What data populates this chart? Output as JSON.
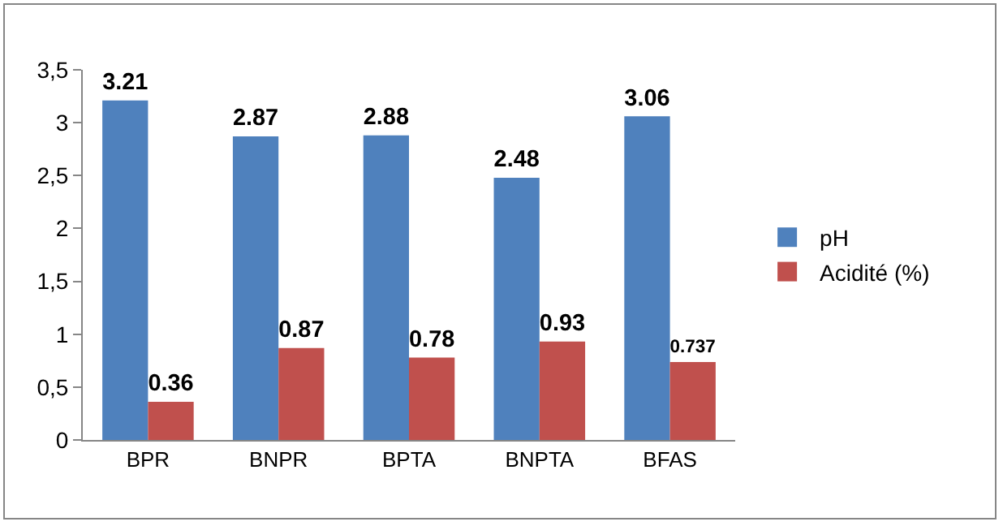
{
  "chart_data": {
    "type": "bar",
    "categories": [
      "BPR",
      "BNPR",
      "BPTA",
      "BNPTA",
      "BFAS"
    ],
    "series": [
      {
        "name": "pH",
        "color": "#4f81bd",
        "values": [
          3.21,
          2.87,
          2.88,
          2.48,
          3.06
        ]
      },
      {
        "name": "Acidité (%)",
        "color": "#c0504d",
        "values": [
          0.36,
          0.87,
          0.78,
          0.93,
          0.737
        ]
      }
    ],
    "ylim": [
      0,
      3.5
    ],
    "yticks": [
      0,
      {
        "value": 0.5,
        "label": "0,5"
      },
      1,
      {
        "value": 1.5,
        "label": "1,5"
      },
      2,
      {
        "value": 2.5,
        "label": "2,5"
      },
      3,
      {
        "value": 3.5,
        "label": "3,5"
      }
    ],
    "grid": false,
    "legend": "right",
    "data_labels": true
  }
}
